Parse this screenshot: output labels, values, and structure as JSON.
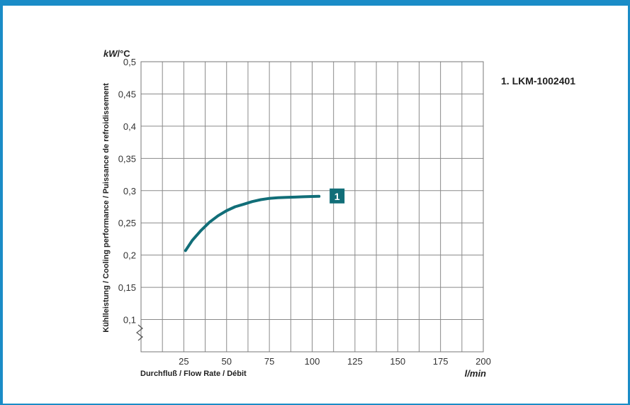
{
  "chart_data": {
    "type": "line",
    "ylabel": "Kühlleistung / Cooling performance / Puissance de refroidissement",
    "yunit_kw": "kW",
    "yunit_rest": "/°C",
    "xlabel": "Durchfluß / Flow Rate / Débit",
    "xunit": "l/min",
    "xlim": [
      0,
      200
    ],
    "ylim": [
      0.05,
      0.5
    ],
    "grid": true,
    "x_ticks": [
      "25",
      "50",
      "75",
      "100",
      "125",
      "150",
      "175",
      "200"
    ],
    "y_ticks": [
      "0,1",
      "0,15",
      "0,2",
      "0,25",
      "0,3",
      "0,35",
      "0,4",
      "0,45",
      "0,5"
    ],
    "y_axis_break": true,
    "legend_position": "top-right",
    "series": [
      {
        "name": "1. LKM-1002401",
        "marker_label": "1",
        "color": "#116e78",
        "points": [
          [
            26,
            0.207
          ],
          [
            30,
            0.223
          ],
          [
            35,
            0.238
          ],
          [
            40,
            0.251
          ],
          [
            45,
            0.261
          ],
          [
            50,
            0.269
          ],
          [
            55,
            0.275
          ],
          [
            60,
            0.279
          ],
          [
            65,
            0.283
          ],
          [
            70,
            0.286
          ],
          [
            75,
            0.288
          ],
          [
            80,
            0.289
          ],
          [
            85,
            0.2895
          ],
          [
            90,
            0.29
          ],
          [
            95,
            0.2905
          ],
          [
            100,
            0.291
          ],
          [
            104,
            0.2912
          ]
        ]
      }
    ]
  }
}
